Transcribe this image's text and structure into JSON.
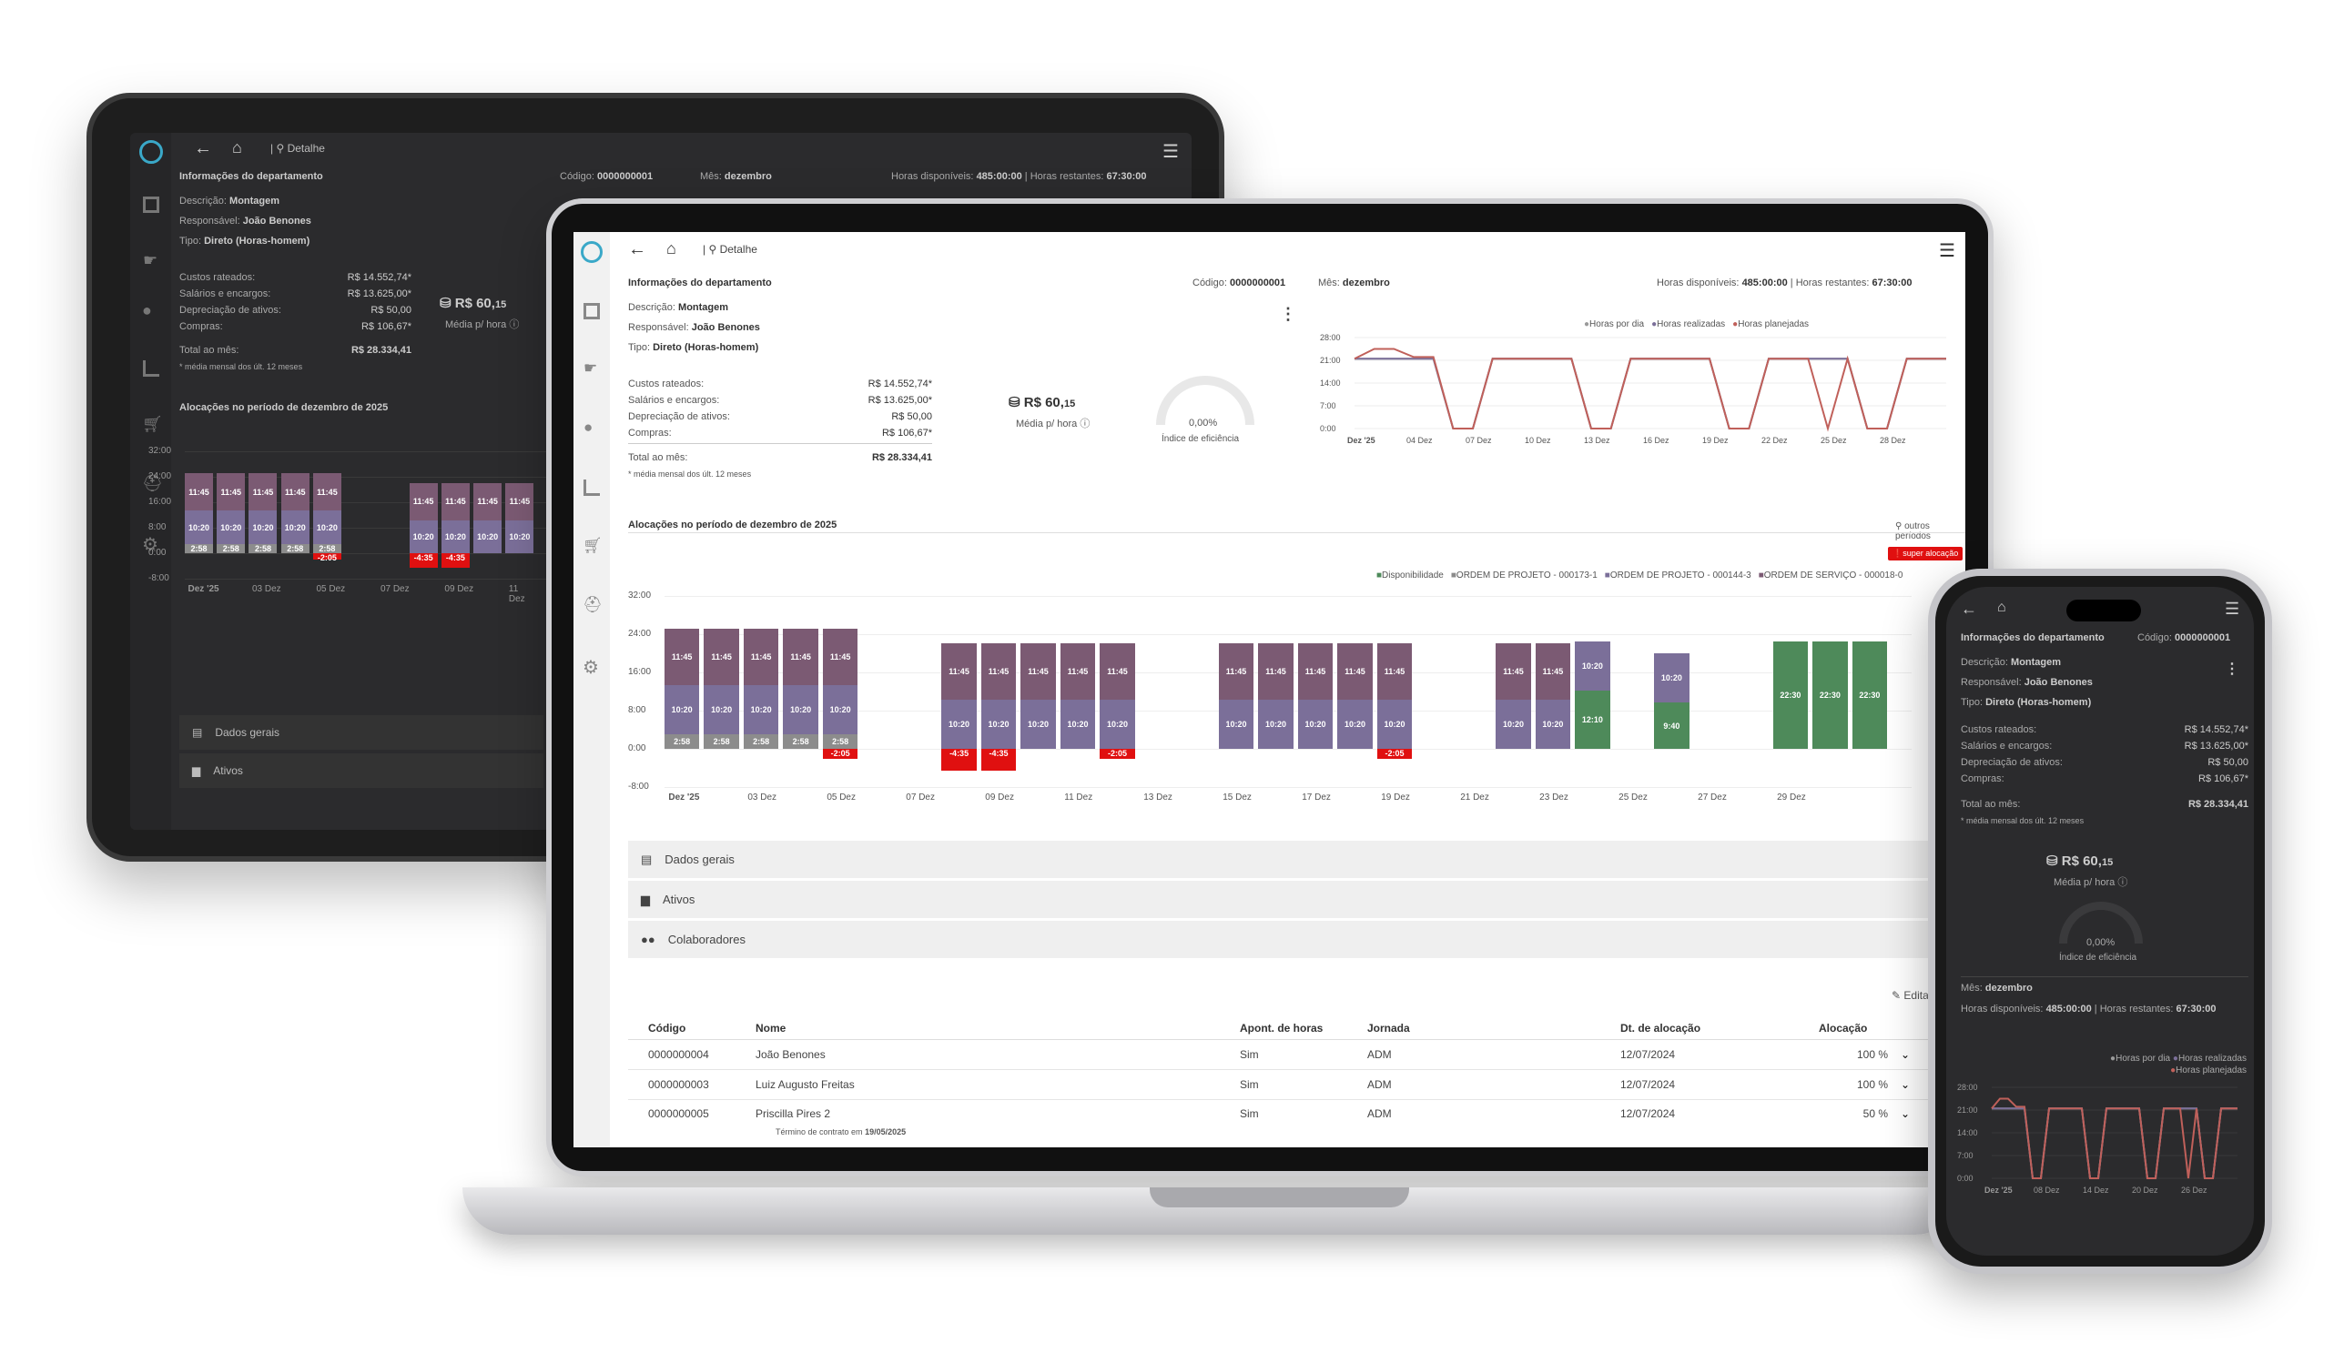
{
  "nav": {
    "breadcrumb": "Detalhe"
  },
  "dept": {
    "section_title": "Informações do departamento",
    "codigo_label": "Código:",
    "codigo": "0000000001",
    "mes_label": "Mês:",
    "mes": "dezembro",
    "horas_label": "Horas disponíveis:",
    "horas": "485:00:00",
    "restantes_label": "| Horas restantes:",
    "restantes": "67:30:00",
    "descricao_label": "Descrição:",
    "descricao": "Montagem",
    "responsavel_label": "Responsável:",
    "responsavel": "João Benones",
    "tipo_label": "Tipo:",
    "tipo": "Direto (Horas-homem)"
  },
  "costs": [
    {
      "label": "Custos rateados:",
      "value": "R$ 14.552,74*"
    },
    {
      "label": "Salários e encargos:",
      "value": "R$ 13.625,00*"
    },
    {
      "label": "Depreciação de ativos:",
      "value": "R$ 50,00"
    },
    {
      "label": "Compras:",
      "value": "R$ 106,67*"
    }
  ],
  "total": {
    "label": "Total ao mês:",
    "value": "R$ 28.334,41",
    "note": "* média mensal dos últ. 12 meses"
  },
  "media": {
    "value": "R$ 60,",
    "cents": "15",
    "label": "Média p/ hora"
  },
  "eficiencia": {
    "value": "0,00%",
    "label": "Índice de eficiência",
    "fraction": 0
  },
  "line_chart": {
    "legend": [
      "Horas por dia",
      "Horas realizadas",
      "Horas planejadas"
    ],
    "yticks": [
      "28:00",
      "21:00",
      "14:00",
      "7:00",
      "0:00"
    ],
    "xticks": [
      "Dez '25",
      "04 Dez",
      "07 Dez",
      "10 Dez",
      "13 Dez",
      "16 Dez",
      "19 Dez",
      "22 Dez",
      "25 Dez",
      "28 Dez"
    ],
    "phone_xticks": [
      "Dez '25",
      "08 Dez",
      "14 Dez",
      "20 Dez",
      "26 Dez"
    ]
  },
  "alloc": {
    "title": "Alocações no período de dezembro de 2025",
    "outros": "outros períodos",
    "badge": "super alocação",
    "legend": [
      "Disponibilidade",
      "ORDEM DE PROJETO - 000173-1",
      "ORDEM DE PROJETO - 000144-3",
      "ORDEM DE SERVIÇO - 000018-0"
    ]
  },
  "chart_data": {
    "type": "bar",
    "title": "Alocações no período de dezembro de 2025",
    "ylim": [
      -8,
      32
    ],
    "yticks": [
      "32:00",
      "24:00",
      "16:00",
      "8:00",
      "0:00",
      "-8:00"
    ],
    "xticks": [
      "Dez '25",
      "03 Dez",
      "05 Dez",
      "07 Dez",
      "09 Dez",
      "11 Dez",
      "13 Dez",
      "15 Dez",
      "17 Dez",
      "19 Dez",
      "21 Dez",
      "23 Dez",
      "25 Dez",
      "27 Dez",
      "29 Dez"
    ],
    "days": [
      {
        "d": 1,
        "os": "11:45",
        "op": "10:20",
        "gr": "2:58"
      },
      {
        "d": 2,
        "os": "11:45",
        "op": "10:20",
        "gr": "2:58"
      },
      {
        "d": 3,
        "os": "11:45",
        "op": "10:20",
        "gr": "2:58"
      },
      {
        "d": 4,
        "os": "11:45",
        "op": "10:20",
        "gr": "2:58"
      },
      {
        "d": 5,
        "os": "11:45",
        "op": "10:20",
        "gr": "2:58",
        "neg": "-2:05"
      },
      {
        "d": 8,
        "os": "11:45",
        "op": "10:20",
        "neg": "-4:35"
      },
      {
        "d": 9,
        "os": "11:45",
        "op": "10:20",
        "neg": "-4:35"
      },
      {
        "d": 10,
        "os": "11:45",
        "op": "10:20"
      },
      {
        "d": 11,
        "os": "11:45",
        "op": "10:20"
      },
      {
        "d": 12,
        "os": "11:45",
        "op": "10:20",
        "neg": "-2:05"
      },
      {
        "d": 15,
        "os": "11:45",
        "op": "10:20"
      },
      {
        "d": 16,
        "os": "11:45",
        "op": "10:20"
      },
      {
        "d": 17,
        "os": "11:45",
        "op": "10:20"
      },
      {
        "d": 18,
        "os": "11:45",
        "op": "10:20"
      },
      {
        "d": 19,
        "os": "11:45",
        "op": "10:20",
        "neg": "-2:05"
      },
      {
        "d": 22,
        "os": "11:45",
        "op": "10:20"
      },
      {
        "d": 23,
        "os": "11:45",
        "op": "10:20"
      },
      {
        "d": 24,
        "op": "10:20",
        "av": "12:10"
      },
      {
        "d": 26,
        "op": "10:20",
        "av": "9:40"
      },
      {
        "d": 29,
        "av": "22:30"
      },
      {
        "d": 30,
        "av": "22:30"
      },
      {
        "d": 31,
        "av": "22:30"
      }
    ]
  },
  "accordion": [
    "Dados gerais",
    "Ativos",
    "Colaboradores"
  ],
  "table": {
    "edit": "Editar",
    "headers": [
      "Código",
      "Nome",
      "Apont. de horas",
      "Jornada",
      "Dt. de alocação",
      "Alocação"
    ],
    "rows": [
      {
        "c": "0000000004",
        "n": "João Benones",
        "a": "Sim",
        "j": "ADM",
        "d": "12/07/2024",
        "p": "100 %"
      },
      {
        "c": "0000000003",
        "n": "Luiz Augusto Freitas",
        "a": "Sim",
        "j": "ADM",
        "d": "12/07/2024",
        "p": "100 %"
      },
      {
        "c": "0000000005",
        "n": "Priscilla Pires 2",
        "a": "Sim",
        "j": "ADM",
        "d": "12/07/2024",
        "p": "50 %"
      }
    ],
    "note_pre": "Término de contrato em",
    "note_date": "19/05/2025"
  },
  "colors": {
    "os": "#7b5a73",
    "op": "#7b6f99",
    "gr": "#8c8c8c",
    "av": "#4e8a5a",
    "neg": "#e01010",
    "line_gray": "#9a9a9a",
    "line_red": "#c0605a",
    "line_purple": "#7b6f99"
  }
}
